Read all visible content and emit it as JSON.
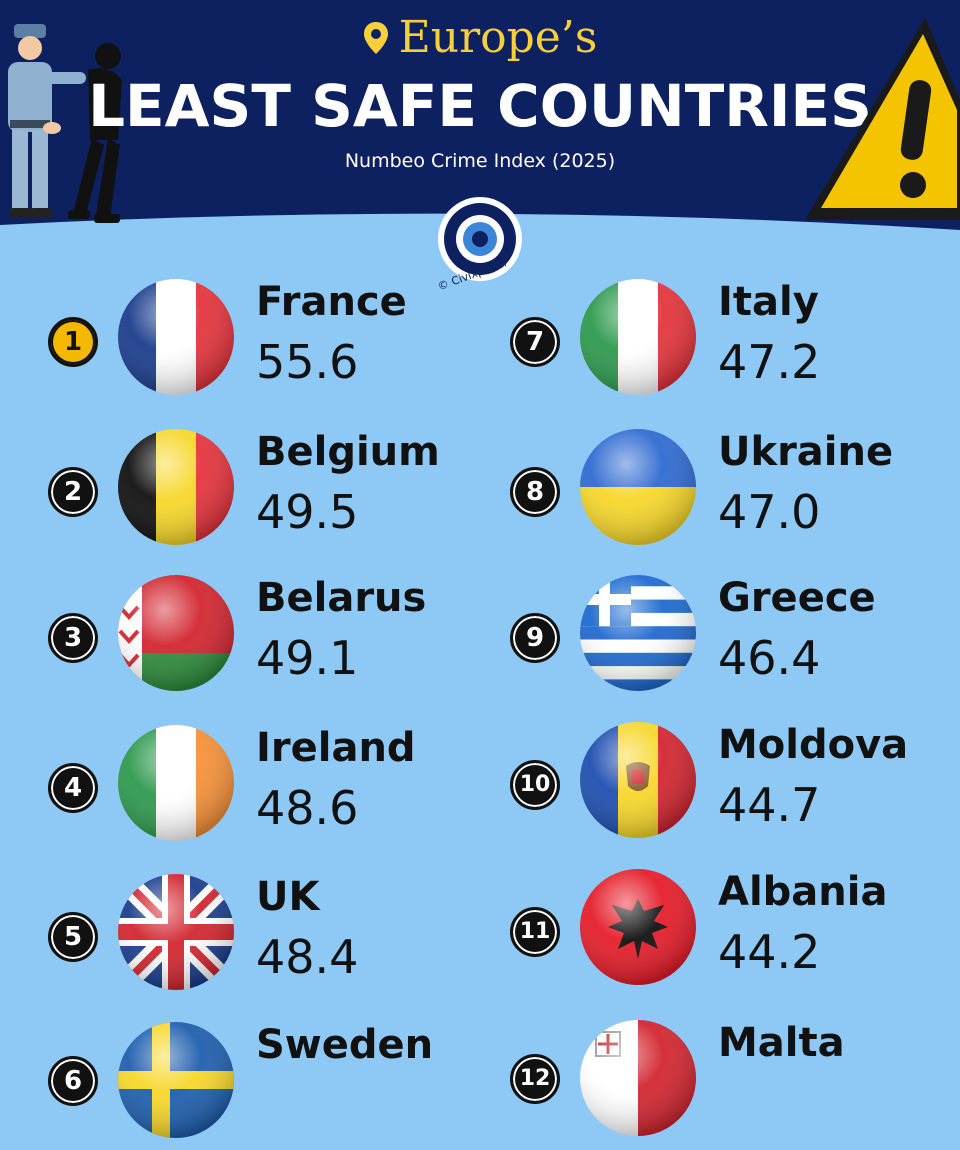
{
  "header": {
    "subtitle": "Europe’s",
    "title": "LEAST SAFE COUNTRIES",
    "source": "Numbeo Crime Index (2025)",
    "credit": "© Civixplorer"
  },
  "colors": {
    "header_bg": "#0d2161",
    "page_bg": "#8ec9f5",
    "accent_gold": "#f7cf3d"
  },
  "left": [
    {
      "rank": "1",
      "name": "France",
      "value": "55.6",
      "flag": "france-flag"
    },
    {
      "rank": "2",
      "name": "Belgium",
      "value": "49.5",
      "flag": "belgium-flag"
    },
    {
      "rank": "3",
      "name": "Belarus",
      "value": "49.1",
      "flag": "belarus-flag"
    },
    {
      "rank": "4",
      "name": "Ireland",
      "value": "48.6",
      "flag": "ireland-flag"
    },
    {
      "rank": "5",
      "name": "UK",
      "value": "48.4",
      "flag": "uk-flag"
    },
    {
      "rank": "6",
      "name": "Sweden",
      "value": "",
      "flag": "sweden-flag"
    }
  ],
  "right": [
    {
      "rank": "7",
      "name": "Italy",
      "value": "47.2",
      "flag": "italy-flag"
    },
    {
      "rank": "8",
      "name": "Ukraine",
      "value": "47.0",
      "flag": "ukraine-flag"
    },
    {
      "rank": "9",
      "name": "Greece",
      "value": "46.4",
      "flag": "greece-flag"
    },
    {
      "rank": "10",
      "name": "Moldova",
      "value": "44.7",
      "flag": "moldova-flag"
    },
    {
      "rank": "11",
      "name": "Albania",
      "value": "44.2",
      "flag": "albania-flag"
    },
    {
      "rank": "12",
      "name": "Malta",
      "value": "",
      "flag": "malta-flag"
    }
  ]
}
